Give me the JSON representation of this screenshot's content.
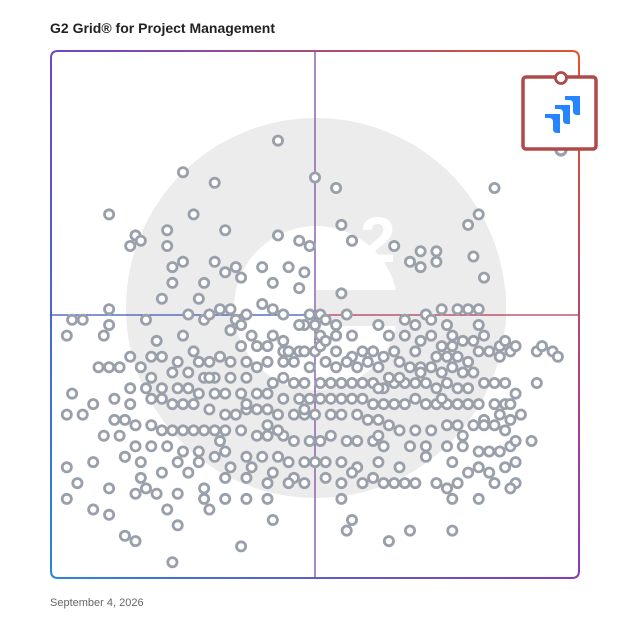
{
  "header": {
    "title": "G2 Grid® for Project Management"
  },
  "footer": {
    "date": "September 4, 2026"
  },
  "colors": {
    "frame_gradient": [
      "#7b4ec9",
      "#e0542c",
      "#2a86d6",
      "#8a3ab8"
    ],
    "quadrant_line_vertical": "#7b4fa6",
    "quadrant_line_horizontal_left": "#3a55b4",
    "quadrant_line_horizontal_right": "#b03a55",
    "marker_stroke": "#9aa0ab",
    "highlight_frame": "#b04a4a",
    "watermark": "#ececec",
    "logo_blue": "#2684ff"
  },
  "icons": {
    "highlight_logo": "jira-logo-icon",
    "watermark": "g2-logo-icon"
  },
  "chart_data": {
    "type": "scatter",
    "title": "G2 Grid® for Project Management",
    "xlabel": "",
    "ylabel": "",
    "xlim": [
      0,
      100
    ],
    "ylim": [
      0,
      100
    ],
    "grid": false,
    "quadrant_split": {
      "x": 50,
      "y": 50
    },
    "highlight": {
      "x": 96,
      "y": 91,
      "icon": "jira-logo-icon"
    },
    "points": [
      [
        43,
        83
      ],
      [
        25,
        77
      ],
      [
        31,
        75
      ],
      [
        54,
        74
      ],
      [
        84,
        74
      ],
      [
        81,
        69
      ],
      [
        27,
        69
      ],
      [
        11,
        69
      ],
      [
        79,
        67
      ],
      [
        22,
        66
      ],
      [
        33,
        66
      ],
      [
        43,
        65
      ],
      [
        16,
        65
      ],
      [
        17,
        64
      ],
      [
        15,
        63
      ],
      [
        22,
        63
      ],
      [
        49,
        63
      ],
      [
        57,
        64
      ],
      [
        65,
        63
      ],
      [
        73,
        62
      ],
      [
        70,
        62
      ],
      [
        80,
        61
      ],
      [
        31,
        60
      ],
      [
        23,
        59
      ],
      [
        45,
        59
      ],
      [
        25,
        60
      ],
      [
        33,
        58
      ],
      [
        40,
        59
      ],
      [
        35,
        59
      ],
      [
        68,
        60
      ],
      [
        73,
        60
      ],
      [
        70,
        59
      ],
      [
        36,
        57
      ],
      [
        23,
        56
      ],
      [
        29,
        56
      ],
      [
        42,
        56
      ],
      [
        47,
        55
      ],
      [
        55,
        54
      ],
      [
        82,
        57
      ],
      [
        28,
        53
      ],
      [
        21,
        53
      ],
      [
        32,
        51
      ],
      [
        34,
        51
      ],
      [
        37,
        50
      ],
      [
        42,
        51
      ],
      [
        35,
        49
      ],
      [
        49,
        50
      ],
      [
        51,
        50
      ],
      [
        56,
        50
      ],
      [
        79,
        51
      ],
      [
        81,
        51
      ],
      [
        77,
        51
      ],
      [
        74,
        51
      ],
      [
        71,
        50
      ],
      [
        72,
        49
      ],
      [
        11,
        51
      ],
      [
        26,
        50
      ],
      [
        29,
        49
      ],
      [
        30,
        50
      ],
      [
        36,
        48
      ],
      [
        34,
        47
      ],
      [
        44,
        50
      ],
      [
        48,
        48
      ],
      [
        50,
        48
      ],
      [
        54,
        48
      ],
      [
        62,
        48
      ],
      [
        67,
        49
      ],
      [
        69,
        48
      ],
      [
        75,
        48
      ],
      [
        76,
        46
      ],
      [
        81,
        48
      ],
      [
        82,
        46
      ],
      [
        4,
        49
      ],
      [
        6,
        49
      ],
      [
        18,
        49
      ],
      [
        11,
        48
      ],
      [
        25,
        46
      ],
      [
        34,
        47
      ],
      [
        38,
        46
      ],
      [
        42,
        46
      ],
      [
        51,
        46
      ],
      [
        57,
        46
      ],
      [
        64,
        46
      ],
      [
        67,
        46
      ],
      [
        70,
        45
      ],
      [
        72,
        46
      ],
      [
        74,
        44
      ],
      [
        76,
        44
      ],
      [
        78,
        45
      ],
      [
        85,
        44
      ],
      [
        86,
        45
      ],
      [
        3,
        46
      ],
      [
        10,
        46
      ],
      [
        20,
        45
      ],
      [
        36,
        44
      ],
      [
        39,
        44
      ],
      [
        41,
        44
      ],
      [
        44,
        43
      ],
      [
        45,
        43
      ],
      [
        47,
        43
      ],
      [
        48,
        43
      ],
      [
        50,
        43
      ],
      [
        51,
        44
      ],
      [
        54,
        43
      ],
      [
        57,
        42
      ],
      [
        59,
        43
      ],
      [
        61,
        43
      ],
      [
        63,
        42
      ],
      [
        65,
        43
      ],
      [
        69,
        43
      ],
      [
        73,
        42
      ],
      [
        75,
        42
      ],
      [
        77,
        42
      ],
      [
        79,
        41
      ],
      [
        81,
        43
      ],
      [
        83,
        43
      ],
      [
        85,
        42
      ],
      [
        87,
        43
      ],
      [
        88,
        44
      ],
      [
        92,
        43
      ],
      [
        93,
        44
      ],
      [
        95,
        43
      ],
      [
        96,
        42
      ],
      [
        15,
        42
      ],
      [
        19,
        42
      ],
      [
        21,
        42
      ],
      [
        24,
        41
      ],
      [
        28,
        41
      ],
      [
        30,
        41
      ],
      [
        32,
        42
      ],
      [
        34,
        41
      ],
      [
        37,
        41
      ],
      [
        39,
        40
      ],
      [
        41,
        41
      ],
      [
        46,
        41
      ],
      [
        49,
        40
      ],
      [
        52,
        41
      ],
      [
        54,
        40
      ],
      [
        56,
        41
      ],
      [
        58,
        40
      ],
      [
        60,
        41
      ],
      [
        62,
        40
      ],
      [
        66,
        41
      ],
      [
        68,
        40
      ],
      [
        70,
        40
      ],
      [
        72,
        40
      ],
      [
        74,
        39
      ],
      [
        76,
        40
      ],
      [
        78,
        39
      ],
      [
        80,
        39
      ],
      [
        9,
        40
      ],
      [
        11,
        40
      ],
      [
        13,
        40
      ],
      [
        17,
        40
      ],
      [
        19,
        38
      ],
      [
        23,
        39
      ],
      [
        26,
        39
      ],
      [
        29,
        38
      ],
      [
        31,
        38
      ],
      [
        34,
        38
      ],
      [
        37,
        38
      ],
      [
        42,
        37
      ],
      [
        44,
        38
      ],
      [
        46,
        37
      ],
      [
        48,
        37
      ],
      [
        51,
        37
      ],
      [
        53,
        37
      ],
      [
        55,
        37
      ],
      [
        57,
        37
      ],
      [
        59,
        37
      ],
      [
        61,
        37
      ],
      [
        63,
        36
      ],
      [
        65,
        37
      ],
      [
        67,
        37
      ],
      [
        69,
        37
      ],
      [
        71,
        37
      ],
      [
        73,
        36
      ],
      [
        75,
        37
      ],
      [
        77,
        36
      ],
      [
        79,
        36
      ],
      [
        82,
        37
      ],
      [
        84,
        37
      ],
      [
        86,
        37
      ],
      [
        15,
        36
      ],
      [
        18,
        36
      ],
      [
        21,
        36
      ],
      [
        24,
        36
      ],
      [
        26,
        36
      ],
      [
        28,
        35
      ],
      [
        31,
        35
      ],
      [
        33,
        35
      ],
      [
        36,
        35
      ],
      [
        39,
        35
      ],
      [
        41,
        35
      ],
      [
        44,
        34
      ],
      [
        47,
        34
      ],
      [
        49,
        34
      ],
      [
        51,
        34
      ],
      [
        53,
        34
      ],
      [
        55,
        34
      ],
      [
        57,
        34
      ],
      [
        59,
        34
      ],
      [
        61,
        33
      ],
      [
        63,
        33
      ],
      [
        65,
        33
      ],
      [
        67,
        33
      ],
      [
        69,
        34
      ],
      [
        71,
        33
      ],
      [
        73,
        33
      ],
      [
        75,
        33
      ],
      [
        77,
        33
      ],
      [
        79,
        33
      ],
      [
        81,
        33
      ],
      [
        84,
        33
      ],
      [
        88,
        35
      ],
      [
        86,
        33
      ],
      [
        4,
        35
      ],
      [
        8,
        33
      ],
      [
        12,
        34
      ],
      [
        15,
        33
      ],
      [
        19,
        34
      ],
      [
        21,
        34
      ],
      [
        23,
        33
      ],
      [
        25,
        33
      ],
      [
        27,
        33
      ],
      [
        30,
        32
      ],
      [
        33,
        31
      ],
      [
        35,
        31
      ],
      [
        37,
        32
      ],
      [
        39,
        32
      ],
      [
        41,
        32
      ],
      [
        43,
        31
      ],
      [
        46,
        31
      ],
      [
        48,
        31
      ],
      [
        50,
        31
      ],
      [
        53,
        31
      ],
      [
        55,
        31
      ],
      [
        58,
        31
      ],
      [
        60,
        30
      ],
      [
        62,
        30
      ],
      [
        64,
        29
      ],
      [
        66,
        28
      ],
      [
        69,
        28
      ],
      [
        72,
        28
      ],
      [
        75,
        29
      ],
      [
        77,
        29
      ],
      [
        80,
        29
      ],
      [
        82,
        30
      ],
      [
        84,
        29
      ],
      [
        87,
        30
      ],
      [
        89,
        31
      ],
      [
        3,
        31
      ],
      [
        6,
        31
      ],
      [
        12,
        30
      ],
      [
        14,
        30
      ],
      [
        16,
        29
      ],
      [
        19,
        29
      ],
      [
        21,
        28
      ],
      [
        23,
        28
      ],
      [
        25,
        28
      ],
      [
        27,
        28
      ],
      [
        29,
        28
      ],
      [
        31,
        28
      ],
      [
        33,
        28
      ],
      [
        36,
        28
      ],
      [
        39,
        27
      ],
      [
        41,
        27
      ],
      [
        44,
        27
      ],
      [
        46,
        26
      ],
      [
        49,
        26
      ],
      [
        51,
        26
      ],
      [
        53,
        27
      ],
      [
        56,
        26
      ],
      [
        58,
        26
      ],
      [
        61,
        26
      ],
      [
        63,
        25
      ],
      [
        68,
        25
      ],
      [
        71,
        25
      ],
      [
        75,
        25
      ],
      [
        78,
        25
      ],
      [
        81,
        24
      ],
      [
        83,
        24
      ],
      [
        85,
        24
      ],
      [
        87,
        25
      ],
      [
        91,
        26
      ],
      [
        88,
        26
      ],
      [
        10,
        27
      ],
      [
        13,
        27
      ],
      [
        16,
        25
      ],
      [
        19,
        25
      ],
      [
        22,
        25
      ],
      [
        25,
        24
      ],
      [
        28,
        24
      ],
      [
        31,
        23
      ],
      [
        33,
        24
      ],
      [
        37,
        23
      ],
      [
        40,
        23
      ],
      [
        43,
        23
      ],
      [
        45,
        22
      ],
      [
        48,
        22
      ],
      [
        50,
        22
      ],
      [
        52,
        22
      ],
      [
        55,
        22
      ],
      [
        58,
        21
      ],
      [
        62,
        22
      ],
      [
        66,
        21
      ],
      [
        71,
        23
      ],
      [
        76,
        22
      ],
      [
        79,
        20
      ],
      [
        81,
        21
      ],
      [
        83,
        20
      ],
      [
        86,
        21
      ],
      [
        3,
        21
      ],
      [
        8,
        22
      ],
      [
        14,
        23
      ],
      [
        17,
        22
      ],
      [
        24,
        22
      ],
      [
        28,
        22
      ],
      [
        34,
        21
      ],
      [
        38,
        21
      ],
      [
        42,
        20
      ],
      [
        46,
        19
      ],
      [
        52,
        19
      ],
      [
        57,
        20
      ],
      [
        61,
        19
      ],
      [
        65,
        18
      ],
      [
        69,
        18
      ],
      [
        75,
        17
      ],
      [
        5,
        18
      ],
      [
        11,
        17
      ],
      [
        17,
        19
      ],
      [
        21,
        20
      ],
      [
        26,
        20
      ],
      [
        33,
        19
      ],
      [
        37,
        19
      ],
      [
        41,
        18
      ],
      [
        45,
        18
      ],
      [
        48,
        18
      ],
      [
        55,
        18
      ],
      [
        59,
        18
      ],
      [
        63,
        18
      ],
      [
        67,
        18
      ],
      [
        73,
        18
      ],
      [
        77,
        18
      ],
      [
        84,
        18
      ],
      [
        88,
        18
      ],
      [
        3,
        15
      ],
      [
        11,
        12
      ],
      [
        16,
        16
      ],
      [
        20,
        16
      ],
      [
        24,
        16
      ],
      [
        29,
        15
      ],
      [
        33,
        15
      ],
      [
        37,
        15
      ],
      [
        41,
        15
      ],
      [
        55,
        15
      ],
      [
        76,
        15
      ],
      [
        81,
        15
      ],
      [
        8,
        13
      ],
      [
        22,
        13
      ],
      [
        30,
        13
      ],
      [
        42,
        11
      ],
      [
        57,
        11
      ],
      [
        68,
        9
      ],
      [
        76,
        9
      ],
      [
        36,
        6
      ],
      [
        56,
        9
      ],
      [
        16,
        7
      ],
      [
        64,
        7
      ],
      [
        23,
        3
      ],
      [
        18,
        17
      ],
      [
        29,
        17
      ],
      [
        24,
        10
      ],
      [
        14,
        23
      ],
      [
        32,
        26
      ],
      [
        44,
        41
      ],
      [
        52,
        49
      ],
      [
        62,
        36
      ],
      [
        66,
        38
      ],
      [
        70,
        39
      ],
      [
        54,
        46
      ],
      [
        47,
        48
      ],
      [
        40,
        52
      ],
      [
        47,
        64
      ],
      [
        55,
        67
      ],
      [
        50,
        76
      ],
      [
        57,
        64
      ],
      [
        48,
        58
      ],
      [
        52,
        45
      ],
      [
        44,
        45
      ],
      [
        30,
        38
      ],
      [
        27,
        43
      ],
      [
        37,
        33
      ],
      [
        41,
        29
      ],
      [
        48,
        32
      ],
      [
        62,
        27
      ],
      [
        64,
        38
      ],
      [
        74,
        34
      ],
      [
        78,
        27
      ],
      [
        86,
        28
      ],
      [
        85,
        31
      ],
      [
        92,
        37
      ],
      [
        80,
        45
      ],
      [
        87,
        33
      ],
      [
        87,
        17
      ],
      [
        88,
        22
      ],
      [
        82,
        29
      ],
      [
        43,
        28
      ],
      [
        14,
        8
      ]
    ]
  }
}
